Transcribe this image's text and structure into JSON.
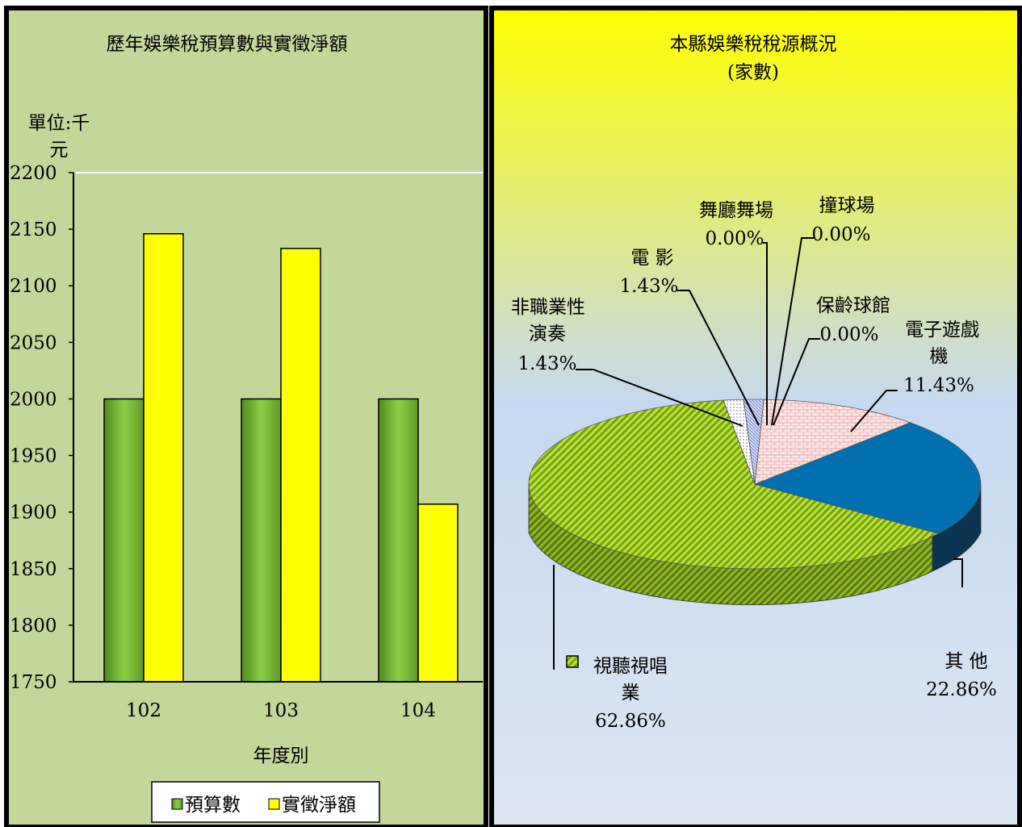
{
  "colors": {
    "left_bg": "#c4d79b",
    "budget_bar": "#7dbb3a",
    "actual_bar": "#ffff00",
    "right_bg_top": "#ffff00",
    "right_bg_bottom": "#dce6f2",
    "slice_other": "#0070b0",
    "slice_game": "#f9d8d8",
    "slice_ktv": "#9acd32",
    "slice_perf": "#ffffff",
    "slice_movie": "#c8d2f0"
  },
  "chart_data": [
    {
      "type": "bar",
      "title": "歷年娛樂稅預算數與實徵淨額",
      "unit_label_line1": "單位:千",
      "unit_label_line2": "元",
      "xlabel": "年度別",
      "ylabel": "",
      "categories": [
        "102",
        "103",
        "104"
      ],
      "series": [
        {
          "name": "預算數",
          "values": [
            2000,
            2000,
            2000
          ]
        },
        {
          "name": "實徵淨額",
          "values": [
            2146,
            2133,
            1907
          ]
        }
      ],
      "ylim": [
        1750,
        2200
      ],
      "yticks": [
        "2200",
        "2150",
        "2100",
        "2050",
        "2000",
        "1950",
        "1900",
        "1850",
        "1800",
        "1750"
      ],
      "legend_position": "bottom"
    },
    {
      "type": "pie",
      "title_line1": "本縣娛樂稅稅源概況",
      "title_line2": "(家數)",
      "slices": [
        {
          "label_lines": [
            "視聽視唱",
            "業"
          ],
          "value": 62.86,
          "display": "62.86%"
        },
        {
          "label_lines": [
            "其 他"
          ],
          "value": 22.86,
          "display": "22.86%"
        },
        {
          "label_lines": [
            "電子遊戲",
            "機"
          ],
          "value": 11.43,
          "display": "11.43%"
        },
        {
          "label_lines": [
            "非職業性",
            "演奏"
          ],
          "value": 1.43,
          "display": "1.43%"
        },
        {
          "label_lines": [
            "電 影"
          ],
          "value": 1.43,
          "display": "1.43%"
        },
        {
          "label_lines": [
            "舞廳舞場"
          ],
          "value": 0.0,
          "display": "0.00%"
        },
        {
          "label_lines": [
            "撞球場"
          ],
          "value": 0.0,
          "display": "0.00%"
        },
        {
          "label_lines": [
            "保齡球館"
          ],
          "value": 0.0,
          "display": "0.00%"
        }
      ]
    }
  ]
}
